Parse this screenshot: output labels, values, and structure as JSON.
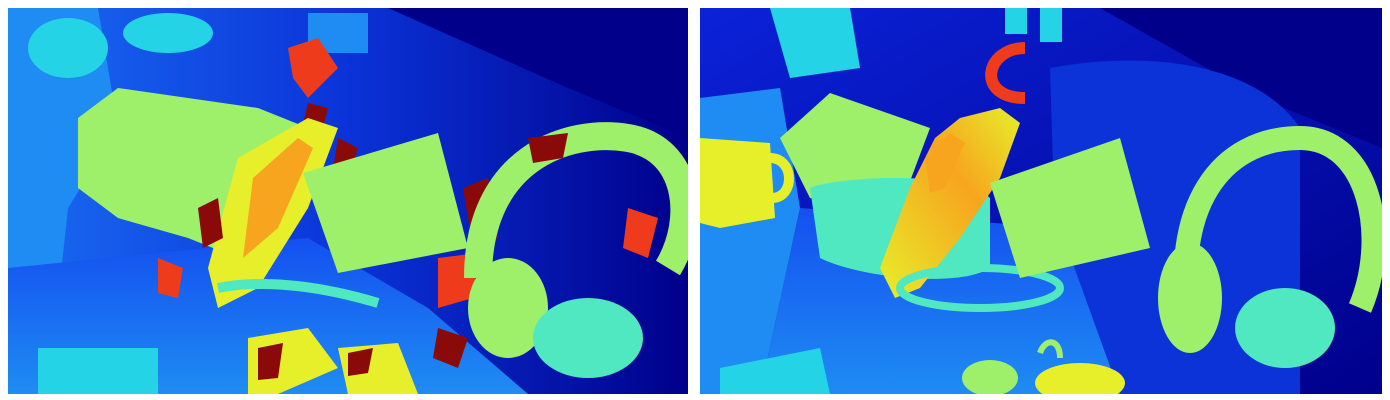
{
  "figure": {
    "panels": [
      {
        "id": "left",
        "kind": "noisy-depth-map"
      },
      {
        "id": "right",
        "kind": "clean-depth-map"
      }
    ],
    "colormap": {
      "name": "jet",
      "far": "#00008b",
      "deep_blue": "#0b22d8",
      "blue": "#1450f0",
      "light_blue": "#1e8cf2",
      "cyan": "#25d3e6",
      "teal": "#4fe8c0",
      "green": "#9ef06a",
      "yellow": "#e6ef2a",
      "orange": "#f7a51e",
      "red": "#ee3b1c",
      "dark_red": "#8a0a0a"
    }
  }
}
